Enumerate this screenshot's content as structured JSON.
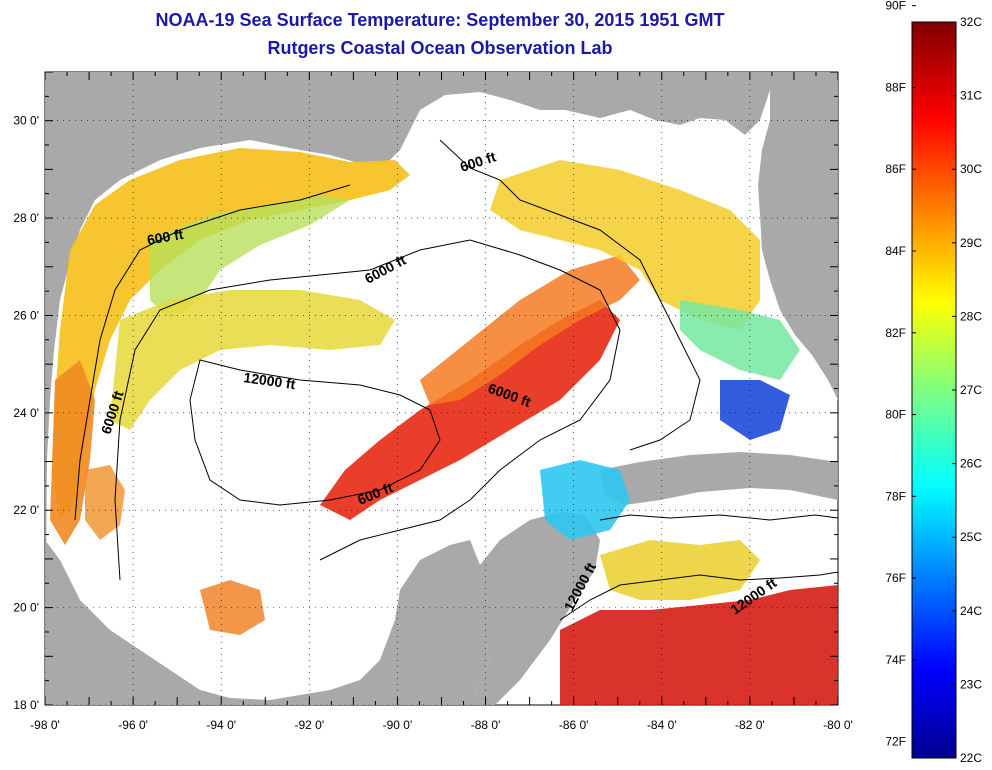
{
  "header": {
    "title": "NOAA-19 Sea Surface Temperature:  September 30, 2015 1951 GMT",
    "subtitle": "Rutgers Coastal Ocean Observation Lab"
  },
  "map": {
    "lon_range": [
      -98,
      -80
    ],
    "lat_range": [
      18,
      31
    ],
    "lon_ticks": [
      "-98 0'",
      "-96 0'",
      "-94 0'",
      "-92 0'",
      "-90 0'",
      "-88 0'",
      "-86 0'",
      "-84 0'",
      "-82 0'",
      "-80 0'"
    ],
    "lat_ticks": [
      "18 0'",
      "20 0'",
      "22 0'",
      "24 0'",
      "26 0'",
      "28 0'",
      "30 0'"
    ],
    "contour_labels": [
      "600 ft",
      "600 ft",
      "6000 ft",
      "12000 ft",
      "6000 ft",
      "6000 ft",
      "600 ft",
      "12000 ft",
      "12000 ft"
    ],
    "colors": {
      "land": "#a9a9a9",
      "cloud": "#ffffff"
    }
  },
  "colorbar": {
    "f_labels": [
      "90F",
      "88F",
      "86F",
      "84F",
      "82F",
      "80F",
      "78F",
      "76F",
      "74F",
      "72F"
    ],
    "c_labels": [
      "32C",
      "31C",
      "30C",
      "29C",
      "28C",
      "27C",
      "26C",
      "25C",
      "24C",
      "23C",
      "22C"
    ],
    "range_c": [
      22,
      32
    ]
  }
}
